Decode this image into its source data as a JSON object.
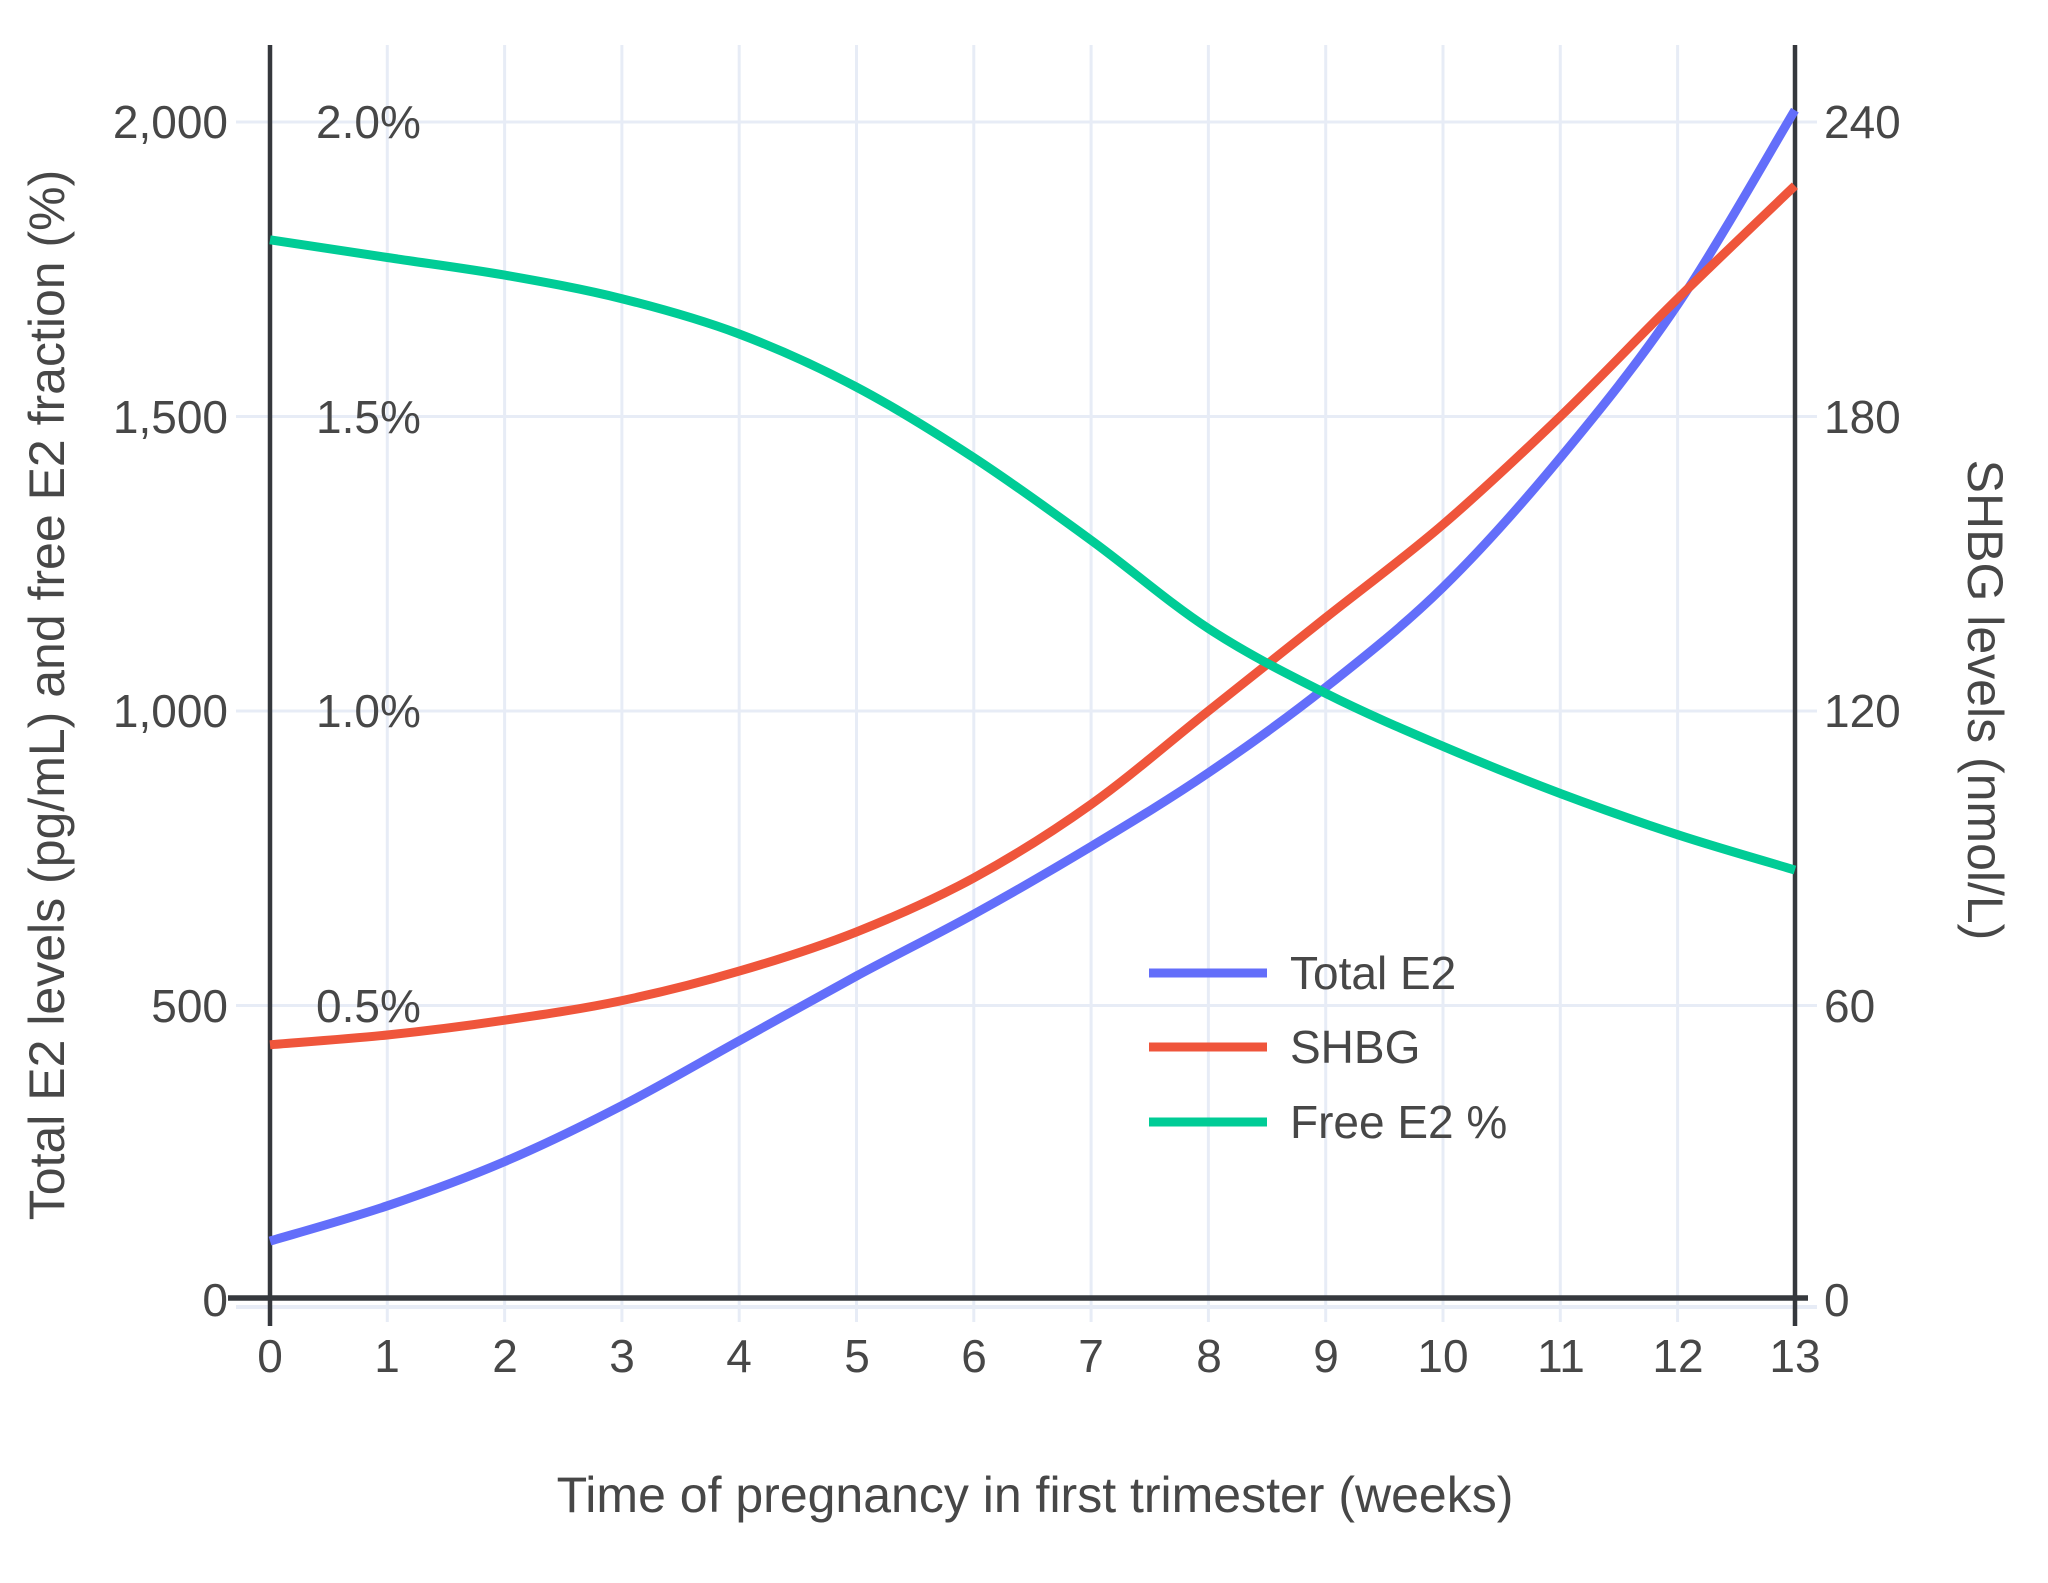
{
  "figure": {
    "x_axis": {
      "title": "Time of pregnancy in first trimester (weeks)"
    },
    "y_axis_left": {
      "title": "Total E2 levels (pg/mL) and free E2 fraction (%)",
      "tick_labels": [
        "0",
        "500",
        "1,000",
        "1,500",
        "2,000"
      ]
    },
    "y_axis_right": {
      "title": "SHBG levels (nmol/L)",
      "tick_labels": [
        "0",
        "60",
        "120",
        "180",
        "240"
      ]
    },
    "percent_labels": [
      "0.5%",
      "1.0%",
      "1.5%",
      "2.0%"
    ],
    "legend": {
      "items": [
        {
          "label": "Total E2",
          "color": "#636EFA"
        },
        {
          "label": "SHBG",
          "color": "#EF553B"
        },
        {
          "label": "Free E2 %",
          "color": "#00CC96"
        }
      ]
    },
    "colors": {
      "total_e2": "#636EFA",
      "shbg": "#EF553B",
      "free_e2_pct": "#00CC96",
      "grid": "#E7ECF6",
      "axis_line": "#35383D",
      "text": "#474747"
    }
  },
  "chart_data": {
    "type": "line",
    "title": "",
    "xlabel": "Time of pregnancy in first trimester (weeks)",
    "x": [
      0,
      1,
      2,
      3,
      4,
      5,
      6,
      7,
      8,
      9,
      10,
      11,
      12,
      13
    ],
    "series": [
      {
        "name": "Total E2",
        "unit": "pg/mL",
        "axis": "left",
        "color": "#636EFA",
        "values": [
          100,
          160,
          235,
          330,
          440,
          550,
          655,
          770,
          895,
          1040,
          1210,
          1430,
          1690,
          2020
        ]
      },
      {
        "name": "SHBG",
        "unit": "nmol/L",
        "axis": "right",
        "color": "#EF553B",
        "values": [
          52,
          54,
          57,
          61,
          67,
          75,
          86,
          101,
          120,
          139,
          158,
          180,
          204,
          227
        ]
      },
      {
        "name": "Free E2 %",
        "unit": "%",
        "axis": "left-percent",
        "color": "#00CC96",
        "values": [
          1.8,
          1.77,
          1.74,
          1.7,
          1.64,
          1.55,
          1.43,
          1.29,
          1.14,
          1.03,
          0.94,
          0.86,
          0.79,
          0.73
        ]
      }
    ],
    "y_left": {
      "label": "Total E2 levels (pg/mL) and free E2 fraction (%)",
      "ticks": [
        0,
        500,
        1000,
        1500,
        2000
      ],
      "percent_ticks": [
        0.5,
        1.0,
        1.5,
        2.0
      ],
      "range": [
        0,
        2130
      ]
    },
    "y_right": {
      "label": "SHBG levels (nmol/L)",
      "ticks": [
        0,
        60,
        120,
        180,
        240
      ],
      "range": [
        0,
        256
      ]
    },
    "grid": true,
    "legend_position": "inside-right-middle"
  }
}
